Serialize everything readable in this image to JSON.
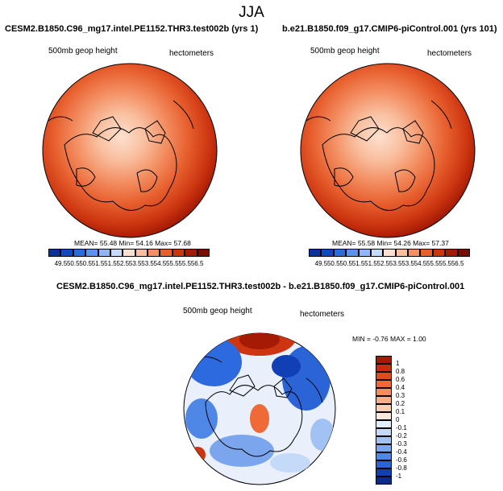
{
  "season": "JJA",
  "panels": [
    {
      "title": "CESM2.B1850.C96_mg17.intel.PE1152.THR3.test002b (yrs 1)",
      "variable": "500mb geop height",
      "units": "hectometers",
      "stats": "MEAN=  55.48  Min=  54.16  Max=  57.68"
    },
    {
      "title": "b.e21.B1850.f09_g17.CMIP6-piControl.001 (yrs 101)",
      "variable": "500mb geop height",
      "units": "hectometers",
      "stats": "MEAN=  55.58  Min=  54.26  Max=  57.37"
    }
  ],
  "colorbar": {
    "labels": [
      "49.5",
      "50.5",
      "50.5",
      "51.5",
      "51.5",
      "52.5",
      "53.5",
      "53.5",
      "54.5",
      "55.5",
      "55.5",
      "56.5"
    ],
    "colors": [
      "#08319a",
      "#1547c4",
      "#2d6ae0",
      "#5b92ee",
      "#8fb7f5",
      "#c6dbfb",
      "#fde0cf",
      "#f9bf9f",
      "#f38f63",
      "#e8602f",
      "#cc3510",
      "#a41a04",
      "#7a0d02"
    ]
  },
  "diff": {
    "title": "CESM2.B1850.C96_mg17.intel.PE1152.THR3.test002b - b.e21.B1850.f09_g17.CMIP6-piControl.001",
    "variable": "500mb geop height",
    "units": "hectometers",
    "stats": "MIN =  -0.76 MAX =   1.00",
    "labels": [
      "1",
      "0.8",
      "0.6",
      "0.4",
      "0.3",
      "0.2",
      "0.1",
      "0",
      "-0.1",
      "-0.2",
      "-0.3",
      "-0.4",
      "-0.6",
      "-0.8",
      "-1"
    ],
    "colors": [
      "#a51a04",
      "#c72c0c",
      "#e24a1e",
      "#f06a38",
      "#f68d5f",
      "#f9ae87",
      "#fbcdb1",
      "#fde8dc",
      "#e2edfb",
      "#c5daf8",
      "#a2c2f3",
      "#7ba6ee",
      "#4f87e6",
      "#2a64d6",
      "#113fb4",
      "#0a2a8c"
    ]
  }
}
